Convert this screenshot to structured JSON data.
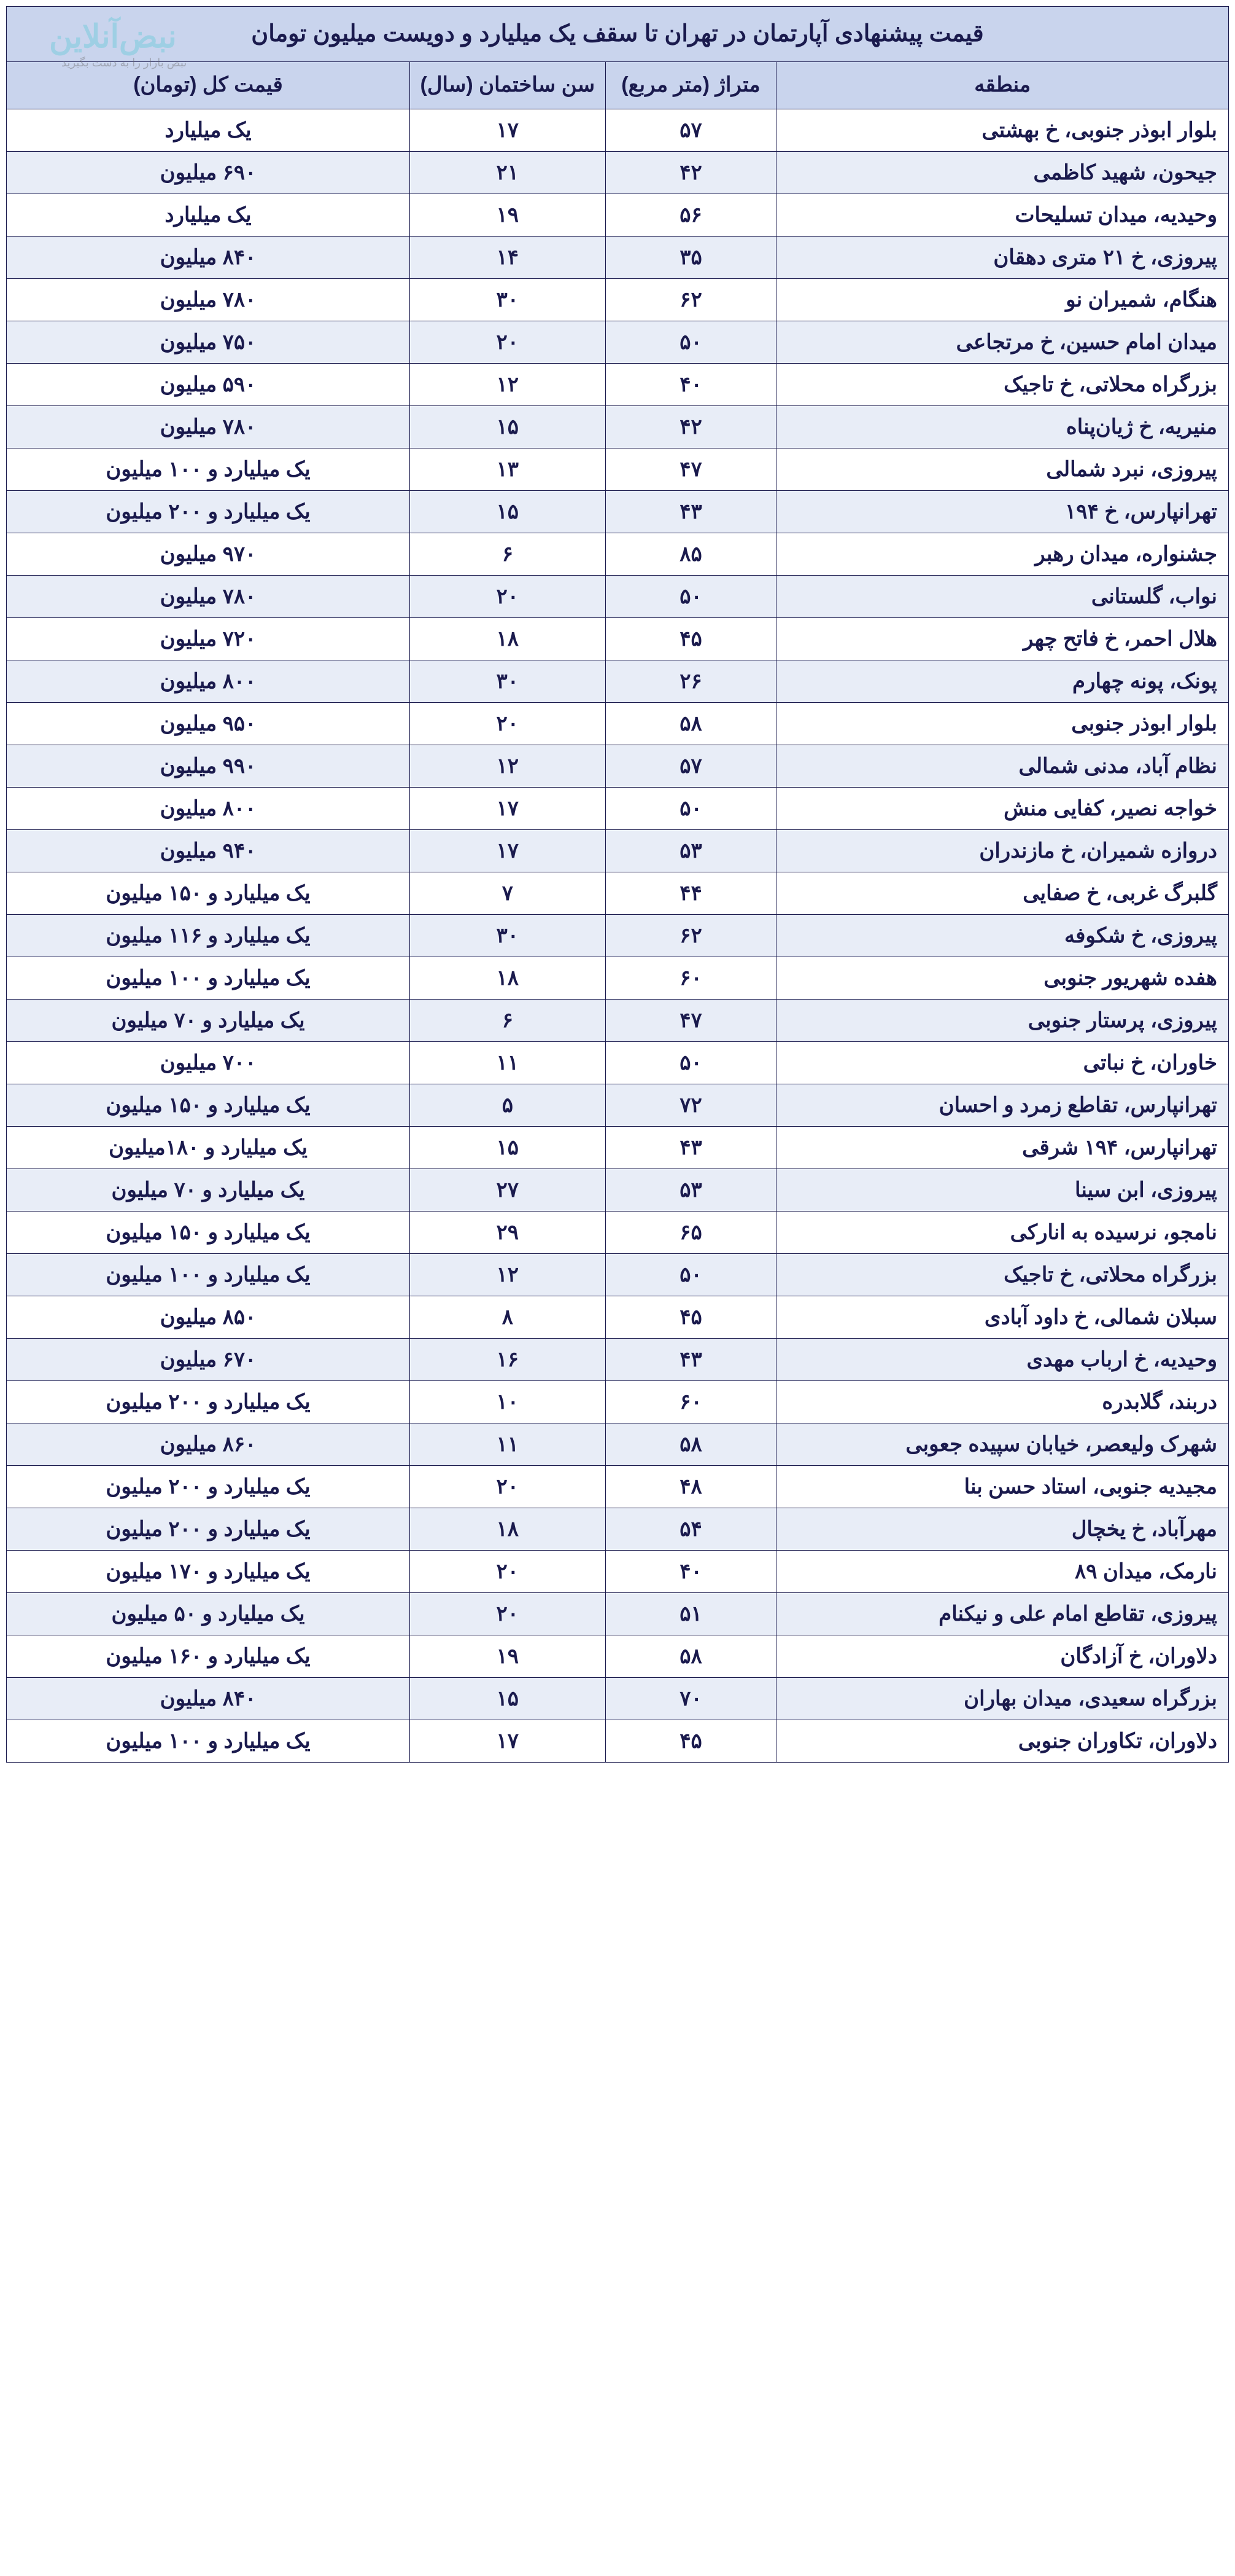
{
  "watermark": {
    "brand": "نبض‌آنلاین",
    "tagline": "نبض بازار را به دست بگیرید"
  },
  "table": {
    "title": "قیمت پیشنهادی آپارتمان در تهران تا سقف یک میلیارد و دویست میلیون تومان",
    "headers": {
      "region": "منطقه",
      "area": "متراژ (متر مربع)",
      "age": "سن ساختمان (سال)",
      "price": "قیمت کل (تومان)"
    },
    "rows": [
      {
        "region": "بلوار ابوذر جنوبی، خ بهشتی",
        "area": "۵۷",
        "age": "۱۷",
        "price": "یک میلیارد"
      },
      {
        "region": "جیحون، شهید کاظمی",
        "area": "۴۲",
        "age": "۲۱",
        "price": "۶۹۰ میلیون"
      },
      {
        "region": "وحیدیه، میدان تسلیحات",
        "area": "۵۶",
        "age": "۱۹",
        "price": "یک میلیارد"
      },
      {
        "region": "پیروزی، خ ۲۱ متری دهقان",
        "area": "۳۵",
        "age": "۱۴",
        "price": "۸۴۰ میلیون"
      },
      {
        "region": "هنگام، شمیران نو",
        "area": "۶۲",
        "age": "۳۰",
        "price": "۷۸۰ میلیون"
      },
      {
        "region": "میدان امام حسین، خ مرتجاعی",
        "area": "۵۰",
        "age": "۲۰",
        "price": "۷۵۰ میلیون"
      },
      {
        "region": "بزرگراه محلاتی، خ تاجیک",
        "area": "۴۰",
        "age": "۱۲",
        "price": "۵۹۰ میلیون"
      },
      {
        "region": "منیریه، خ ژیان‌پناه",
        "area": "۴۲",
        "age": "۱۵",
        "price": "۷۸۰ میلیون"
      },
      {
        "region": "پیروزی، نبرد شمالی",
        "area": "۴۷",
        "age": "۱۳",
        "price": "یک میلیارد و ۱۰۰ میلیون"
      },
      {
        "region": "تهرانپارس، خ ۱۹۴",
        "area": "۴۳",
        "age": "۱۵",
        "price": "یک میلیارد و ۲۰۰ میلیون"
      },
      {
        "region": "جشنواره، میدان رهبر",
        "area": "۸۵",
        "age": "۶",
        "price": "۹۷۰ میلیون"
      },
      {
        "region": "نواب، گلستانی",
        "area": "۵۰",
        "age": "۲۰",
        "price": "۷۸۰ میلیون"
      },
      {
        "region": "هلال احمر، خ فاتح چهر",
        "area": "۴۵",
        "age": "۱۸",
        "price": "۷۲۰ میلیون"
      },
      {
        "region": "پونک، پونه چهارم",
        "area": "۲۶",
        "age": "۳۰",
        "price": "۸۰۰ میلیون"
      },
      {
        "region": "بلوار ابوذر جنوبی",
        "area": "۵۸",
        "age": "۲۰",
        "price": "۹۵۰ میلیون"
      },
      {
        "region": "نظام آباد، مدنی شمالی",
        "area": "۵۷",
        "age": "۱۲",
        "price": "۹۹۰ میلیون"
      },
      {
        "region": "خواجه نصیر، کفایی منش",
        "area": "۵۰",
        "age": "۱۷",
        "price": "۸۰۰ میلیون"
      },
      {
        "region": "دروازه شمیران، خ مازندران",
        "area": "۵۳",
        "age": "۱۷",
        "price": "۹۴۰ میلیون"
      },
      {
        "region": "گلبرگ غربی، خ صفایی",
        "area": "۴۴",
        "age": "۷",
        "price": "یک میلیارد و ۱۵۰ میلیون"
      },
      {
        "region": "پیروزی، خ شکوفه",
        "area": "۶۲",
        "age": "۳۰",
        "price": "یک میلیارد و ۱۱۶ میلیون"
      },
      {
        "region": "هفده شهریور جنوبی",
        "area": "۶۰",
        "age": "۱۸",
        "price": "یک میلیارد و ۱۰۰ میلیون"
      },
      {
        "region": "پیروزی، پرستار جنوبی",
        "area": "۴۷",
        "age": "۶",
        "price": "یک میلیارد و ۷۰ میلیون"
      },
      {
        "region": "خاوران، خ نباتی",
        "area": "۵۰",
        "age": "۱۱",
        "price": "۷۰۰ میلیون"
      },
      {
        "region": "تهرانپارس، تقاطع زمرد و احسان",
        "area": "۷۲",
        "age": "۵",
        "price": "یک میلیارد و ۱۵۰ میلیون"
      },
      {
        "region": "تهرانپارس، ۱۹۴ شرقی",
        "area": "۴۳",
        "age": "۱۵",
        "price": "یک میلیارد و ۱۸۰میلیون"
      },
      {
        "region": "پیروزی، ابن سینا",
        "area": "۵۳",
        "age": "۲۷",
        "price": "یک میلیارد و ۷۰ میلیون"
      },
      {
        "region": "نامجو، نرسیده به انارکی",
        "area": "۶۵",
        "age": "۲۹",
        "price": "یک میلیارد و ۱۵۰ میلیون"
      },
      {
        "region": "بزرگراه محلاتی، خ تاجیک",
        "area": "۵۰",
        "age": "۱۲",
        "price": "یک میلیارد و ۱۰۰ میلیون"
      },
      {
        "region": "سبلان شمالی، خ داود آبادی",
        "area": "۴۵",
        "age": "۸",
        "price": "۸۵۰ میلیون"
      },
      {
        "region": "وحیدیه، خ ارباب مهدی",
        "area": "۴۳",
        "age": "۱۶",
        "price": "۶۷۰ میلیون"
      },
      {
        "region": "دربند، گلابدره",
        "area": "۶۰",
        "age": "۱۰",
        "price": "یک میلیارد و ۲۰۰ میلیون"
      },
      {
        "region": "شهرک ولیعصر، خیابان سپیده جعوبی",
        "area": "۵۸",
        "age": "۱۱",
        "price": "۸۶۰ میلیون"
      },
      {
        "region": "مجیدیه جنوبی، استاد حسن بنا",
        "area": "۴۸",
        "age": "۲۰",
        "price": "یک میلیارد و ۲۰۰ میلیون"
      },
      {
        "region": "مهرآباد، خ یخچال",
        "area": "۵۴",
        "age": "۱۸",
        "price": "یک میلیارد و ۲۰۰ میلیون"
      },
      {
        "region": "نارمک، میدان ۸۹",
        "area": "۴۰",
        "age": "۲۰",
        "price": "یک میلیارد و ۱۷۰ میلیون"
      },
      {
        "region": "پیروزی، تقاطع امام علی و نیکنام",
        "area": "۵۱",
        "age": "۲۰",
        "price": "یک میلیارد و ۵۰ میلیون"
      },
      {
        "region": "دلاوران، خ آزادگان",
        "area": "۵۸",
        "age": "۱۹",
        "price": "یک میلیارد و ۱۶۰ میلیون"
      },
      {
        "region": "بزرگراه سعیدی، میدان بهاران",
        "area": "۷۰",
        "age": "۱۵",
        "price": "۸۴۰ میلیون"
      },
      {
        "region": "دلاوران، تکاوران جنوبی",
        "area": "۴۵",
        "age": "۱۷",
        "price": "یک میلیارد و ۱۰۰ میلیون"
      }
    ]
  },
  "style": {
    "header_bg": "#c9d4ed",
    "row_alt_bg": "#e8edf7",
    "border_color": "#1a1a4d",
    "text_color": "#1a1a4d",
    "title_fontsize": 38,
    "header_fontsize": 34,
    "cell_fontsize": 34
  }
}
